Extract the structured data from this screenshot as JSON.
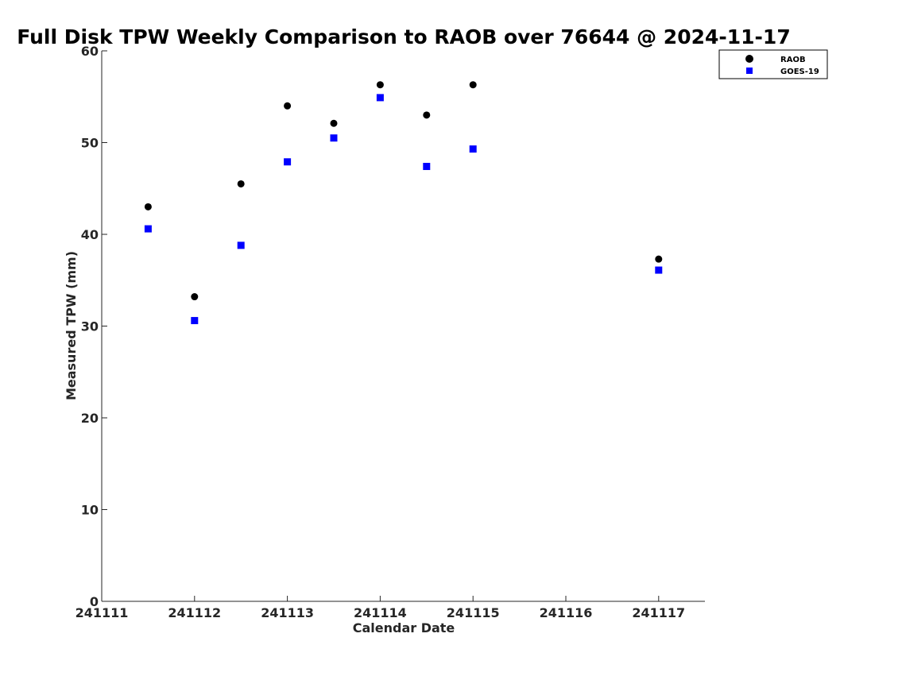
{
  "colors": {
    "raob": "#000000",
    "goes": "#0000ff",
    "axis": "#262626"
  },
  "chart_data": {
    "type": "scatter",
    "title": "Full Disk TPW Weekly Comparison to RAOB over 76644 @ 2024-11-17",
    "xlabel": "Calendar Date",
    "ylabel": "Measured TPW (mm)",
    "x_ticks": [
      {
        "value": 0,
        "label": "241111"
      },
      {
        "value": 1,
        "label": "241112"
      },
      {
        "value": 2,
        "label": "241113"
      },
      {
        "value": 3,
        "label": "241114"
      },
      {
        "value": 4,
        "label": "241115"
      },
      {
        "value": 5,
        "label": "241116"
      },
      {
        "value": 6,
        "label": "241117"
      }
    ],
    "y_ticks": [
      0,
      10,
      20,
      30,
      40,
      50,
      60
    ],
    "xlim": [
      0,
      6.5
    ],
    "ylim": [
      0,
      60
    ],
    "grid": false,
    "legend_position": "top-right",
    "series": [
      {
        "name": "RAOB",
        "marker": "circle",
        "color": "#000000",
        "points": [
          {
            "x": 0.5,
            "y": 43.0
          },
          {
            "x": 1.0,
            "y": 33.2
          },
          {
            "x": 1.5,
            "y": 45.5
          },
          {
            "x": 2.0,
            "y": 54.0
          },
          {
            "x": 2.5,
            "y": 52.1
          },
          {
            "x": 3.0,
            "y": 56.3
          },
          {
            "x": 3.5,
            "y": 53.0
          },
          {
            "x": 4.0,
            "y": 56.3
          },
          {
            "x": 6.0,
            "y": 37.3
          }
        ]
      },
      {
        "name": "GOES-19",
        "marker": "square",
        "color": "#0000ff",
        "points": [
          {
            "x": 0.5,
            "y": 40.6
          },
          {
            "x": 1.0,
            "y": 30.6
          },
          {
            "x": 1.5,
            "y": 38.8
          },
          {
            "x": 2.0,
            "y": 47.9
          },
          {
            "x": 2.5,
            "y": 50.5
          },
          {
            "x": 3.0,
            "y": 54.9
          },
          {
            "x": 3.5,
            "y": 47.4
          },
          {
            "x": 4.0,
            "y": 49.3
          },
          {
            "x": 6.0,
            "y": 36.1
          }
        ]
      }
    ]
  }
}
